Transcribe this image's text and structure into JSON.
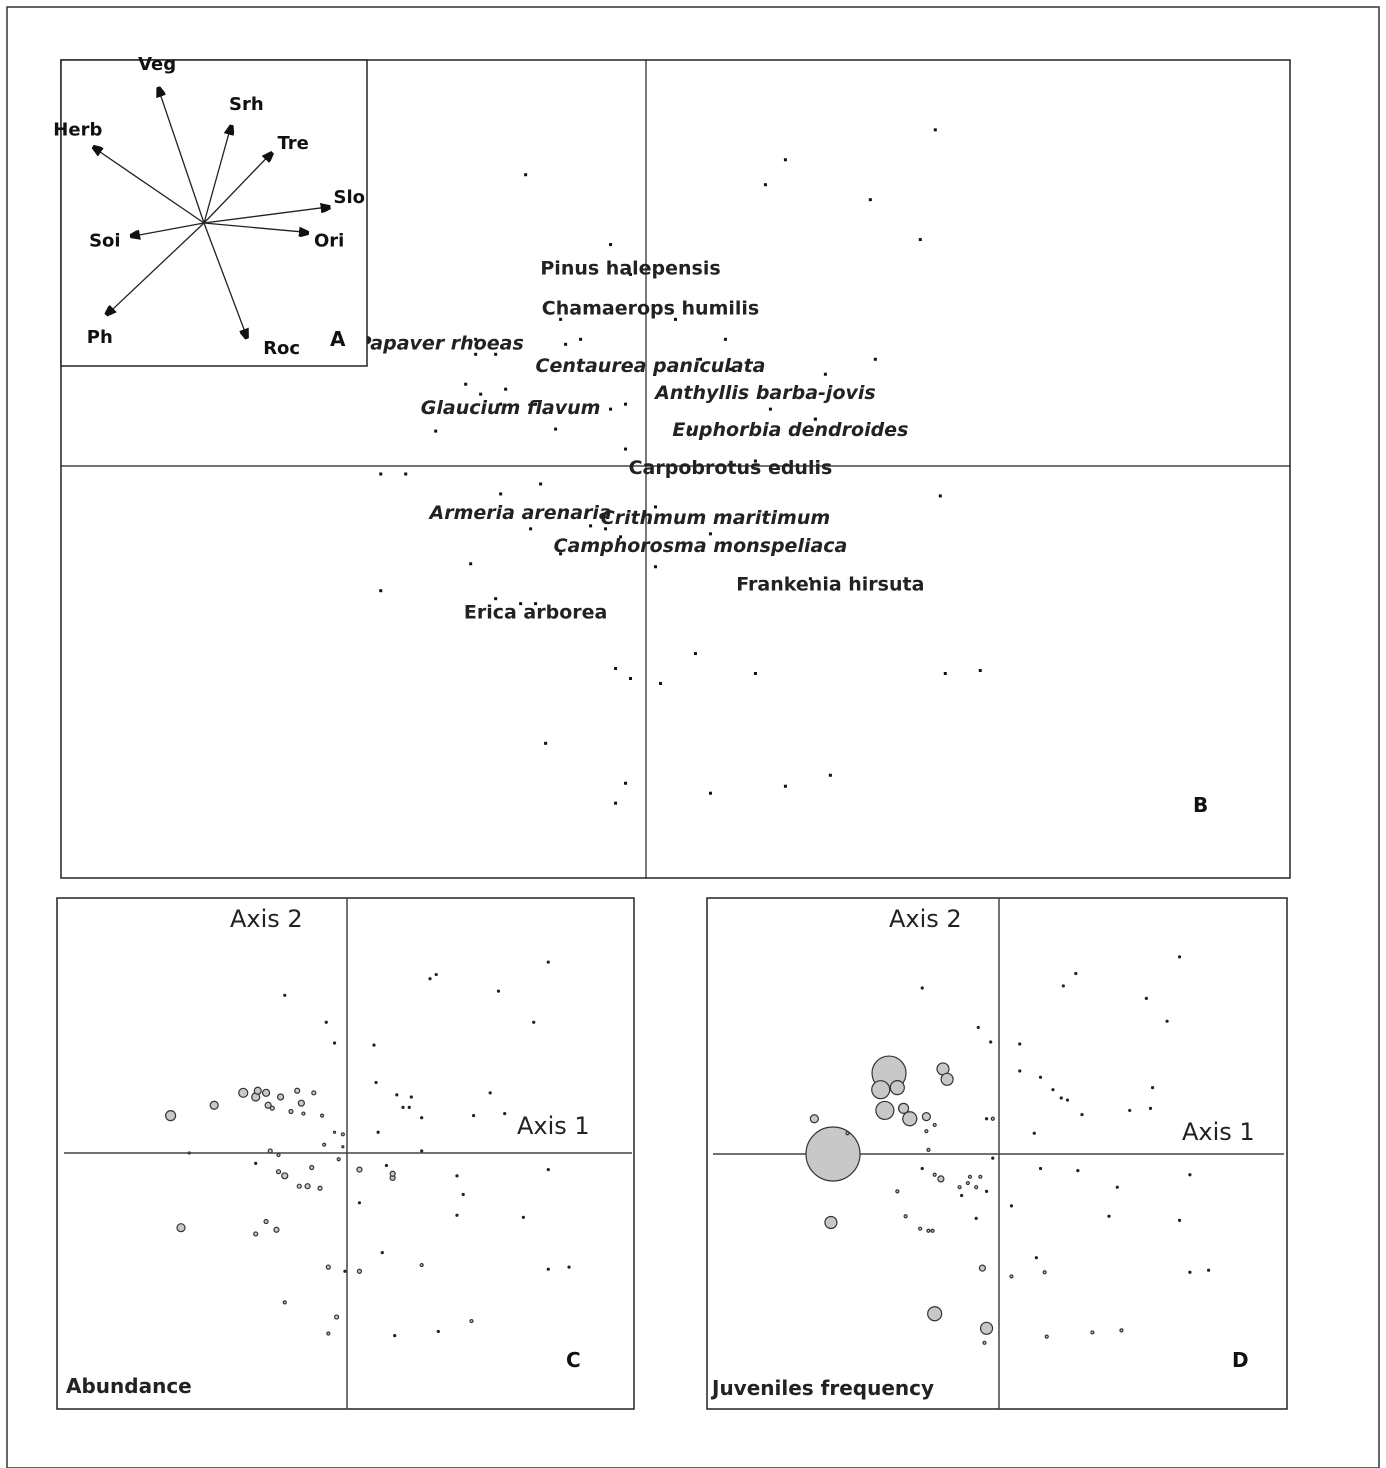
{
  "panels": {
    "a": {
      "letter": "A"
    },
    "b": {
      "letter": "B"
    },
    "c": {
      "letter": "C",
      "x_axis_label": "Axis 1",
      "y_axis_label": "Axis 2",
      "caption": "Abundance"
    },
    "d": {
      "letter": "D",
      "x_axis_label": "Axis 1",
      "y_axis_label": "Axis 2",
      "caption": "Juveniles frequency"
    }
  },
  "chart_data": [
    {
      "panel": "A",
      "type": "biplot",
      "vectors": [
        {
          "name": "Veg",
          "x": -0.34,
          "y": 1.0
        },
        {
          "name": "Herb",
          "x": -0.82,
          "y": 0.56
        },
        {
          "name": "Srh",
          "x": 0.2,
          "y": 0.72
        },
        {
          "name": "Tre",
          "x": 0.5,
          "y": 0.52
        },
        {
          "name": "Slo",
          "x": 0.93,
          "y": 0.12
        },
        {
          "name": "Ori",
          "x": 0.77,
          "y": -0.07
        },
        {
          "name": "Soi",
          "x": -0.54,
          "y": -0.1
        },
        {
          "name": "Ph",
          "x": -0.72,
          "y": -0.68
        },
        {
          "name": "Roc",
          "x": 0.32,
          "y": -0.85
        }
      ]
    },
    {
      "panel": "B",
      "type": "scatter",
      "xlim": [
        -5.8,
        6.5
      ],
      "ylim": [
        -4.1,
        4.1
      ],
      "species": [
        {
          "name": "Pinus halepensis",
          "x": -0.1,
          "y": 1.95
        },
        {
          "name": "Chamaerops humilis",
          "x": 0.1,
          "y": 1.55
        },
        {
          "name": "Papaver rhoeas",
          "x": -2.0,
          "y": 1.2
        },
        {
          "name": "Centaurea paniculata",
          "x": 0.1,
          "y": 0.97
        },
        {
          "name": "Anthyllis barba-jovis",
          "x": 1.25,
          "y": 0.7
        },
        {
          "name": "Glaucium flavum",
          "x": -1.3,
          "y": 0.55
        },
        {
          "name": "Euphorbia dendroides",
          "x": 1.5,
          "y": 0.33
        },
        {
          "name": "Carpobrotus edulis",
          "x": 0.9,
          "y": -0.05
        },
        {
          "name": "Armeria arenaria",
          "x": -1.2,
          "y": -0.5
        },
        {
          "name": "Crithmum maritimum",
          "x": 0.75,
          "y": -0.55
        },
        {
          "name": "Camphorosma monspeliaca",
          "x": 0.6,
          "y": -0.83
        },
        {
          "name": "Frankenia hirsuta",
          "x": 1.9,
          "y": -1.22
        },
        {
          "name": "Erica arborea",
          "x": -1.05,
          "y": -1.5
        }
      ],
      "points": [
        [
          2.95,
          3.4
        ],
        [
          1.45,
          3.1
        ],
        [
          1.25,
          2.85
        ],
        [
          2.3,
          2.7
        ],
        [
          -1.15,
          2.95
        ],
        [
          2.8,
          2.3
        ],
        [
          -0.3,
          2.25
        ],
        [
          -0.1,
          1.95
        ],
        [
          0.35,
          1.5
        ],
        [
          -0.8,
          1.5
        ],
        [
          -0.6,
          1.3
        ],
        [
          0.85,
          1.3
        ],
        [
          -0.75,
          1.25
        ],
        [
          -1.65,
          1.3
        ],
        [
          -1.65,
          1.15
        ],
        [
          -1.45,
          1.15
        ],
        [
          0.6,
          1.1
        ],
        [
          2.35,
          1.1
        ],
        [
          0.9,
          1.0
        ],
        [
          1.85,
          0.95
        ],
        [
          -1.35,
          0.8
        ],
        [
          -1.75,
          0.85
        ],
        [
          -1.4,
          0.65
        ],
        [
          -1.05,
          0.65
        ],
        [
          -0.15,
          0.65
        ],
        [
          1.3,
          0.6
        ],
        [
          1.75,
          0.5
        ],
        [
          -0.3,
          0.6
        ],
        [
          -1.6,
          0.75
        ],
        [
          0.5,
          0.4
        ],
        [
          1.75,
          0.5
        ],
        [
          -2.05,
          0.38
        ],
        [
          -0.85,
          0.4
        ],
        [
          -0.15,
          0.2
        ],
        [
          1.15,
          0.08
        ],
        [
          -2.6,
          -0.05
        ],
        [
          -2.35,
          -0.05
        ],
        [
          -1.0,
          -0.15
        ],
        [
          -1.4,
          -0.25
        ],
        [
          3.0,
          -0.27
        ],
        [
          0.15,
          -0.38
        ],
        [
          -0.5,
          -0.57
        ],
        [
          -0.35,
          -0.6
        ],
        [
          -0.2,
          -0.68
        ],
        [
          0.7,
          -0.65
        ],
        [
          -1.1,
          -0.6
        ],
        [
          -0.8,
          -0.85
        ],
        [
          0.15,
          -0.98
        ],
        [
          -1.7,
          -0.95
        ],
        [
          1.7,
          -1.1
        ],
        [
          -2.6,
          -1.22
        ],
        [
          -1.45,
          -1.3
        ],
        [
          -1.2,
          -1.35
        ],
        [
          -1.05,
          -1.35
        ],
        [
          0.55,
          -1.85
        ],
        [
          -0.25,
          -2.0
        ],
        [
          -0.1,
          -2.1
        ],
        [
          0.2,
          -2.15
        ],
        [
          1.15,
          -2.05
        ],
        [
          3.05,
          -2.05
        ],
        [
          3.4,
          -2.02
        ],
        [
          -0.95,
          -2.75
        ],
        [
          -0.15,
          -3.15
        ],
        [
          0.7,
          -3.25
        ],
        [
          1.45,
          -3.18
        ],
        [
          1.9,
          -3.07
        ],
        [
          -0.25,
          -3.35
        ]
      ]
    },
    {
      "panel": "C",
      "type": "bubble",
      "title": "Abundance",
      "xlabel": "Axis 1",
      "ylabel": "Axis 2",
      "xlim": [
        -7.0,
        7.0
      ],
      "ylim": [
        -6.1,
        6.1
      ],
      "points": [
        [
          -4.25,
          0.9,
          5
        ],
        [
          -3.2,
          1.15,
          4
        ],
        [
          -2.5,
          1.45,
          4.5
        ],
        [
          -2.2,
          1.35,
          4
        ],
        [
          -2.15,
          1.5,
          3.5
        ],
        [
          -1.95,
          1.45,
          3.5
        ],
        [
          -1.9,
          1.15,
          3
        ],
        [
          -1.6,
          1.35,
          3
        ],
        [
          -1.2,
          1.5,
          2.5
        ],
        [
          -1.1,
          1.2,
          3
        ],
        [
          -1.8,
          1.08,
          2
        ],
        [
          -0.8,
          1.45,
          2
        ],
        [
          -1.35,
          1.0,
          2
        ],
        [
          -1.05,
          0.95,
          1.5
        ],
        [
          -0.6,
          0.9,
          1.5
        ],
        [
          -1.85,
          0.05,
          2
        ],
        [
          -1.65,
          -0.05,
          1.5
        ],
        [
          -0.55,
          0.2,
          1.5
        ],
        [
          -0.1,
          0.45,
          1.5
        ],
        [
          -3.8,
          0.0,
          1
        ],
        [
          -0.2,
          -0.15,
          1.5
        ],
        [
          -0.85,
          -0.35,
          2
        ],
        [
          -0.1,
          0.15,
          1
        ],
        [
          -0.3,
          0.5,
          1
        ],
        [
          0.3,
          -0.4,
          2.5
        ],
        [
          1.1,
          -0.6,
          2.5
        ],
        [
          -1.5,
          -0.55,
          3
        ],
        [
          -1.65,
          -0.45,
          2
        ],
        [
          -1.15,
          -0.8,
          2
        ],
        [
          -0.95,
          -0.8,
          2.5
        ],
        [
          -0.65,
          -0.85,
          2
        ],
        [
          -4.0,
          -1.8,
          4
        ],
        [
          -1.95,
          -1.65,
          2
        ],
        [
          -1.7,
          -1.85,
          2.5
        ],
        [
          -2.2,
          -1.95,
          2
        ],
        [
          -0.45,
          -2.75,
          2
        ],
        [
          0.3,
          -2.85,
          2
        ],
        [
          -1.5,
          -3.6,
          1.5
        ],
        [
          -0.25,
          -3.95,
          2
        ],
        [
          -0.45,
          -4.35,
          1.5
        ],
        [
          1.8,
          -2.7,
          1.5
        ],
        [
          3.0,
          -4.05,
          1.5
        ],
        [
          1.1,
          -0.5,
          2.5
        ]
      ],
      "small_points": [
        [
          -1.5,
          3.8
        ],
        [
          -0.5,
          3.15
        ],
        [
          0.65,
          2.6
        ],
        [
          2.0,
          4.2
        ],
        [
          2.15,
          4.3
        ],
        [
          3.65,
          3.9
        ],
        [
          4.85,
          4.6
        ],
        [
          4.5,
          3.15
        ],
        [
          -0.3,
          2.65
        ],
        [
          0.7,
          1.7
        ],
        [
          1.2,
          1.4
        ],
        [
          1.35,
          1.1
        ],
        [
          1.5,
          1.1
        ],
        [
          1.55,
          1.35
        ],
        [
          3.45,
          1.45
        ],
        [
          3.8,
          0.95
        ],
        [
          3.05,
          0.9
        ],
        [
          1.8,
          0.85
        ],
        [
          0.75,
          0.5
        ],
        [
          1.8,
          0.05
        ],
        [
          0.95,
          -0.3
        ],
        [
          2.65,
          -0.55
        ],
        [
          2.8,
          -1.0
        ],
        [
          4.85,
          -0.4
        ],
        [
          -2.2,
          -0.25
        ],
        [
          0.3,
          -1.2
        ],
        [
          2.65,
          -1.5
        ],
        [
          4.25,
          -1.55
        ],
        [
          0.85,
          -2.4
        ],
        [
          4.85,
          -2.8
        ],
        [
          5.35,
          -2.75
        ],
        [
          -0.05,
          -2.85
        ],
        [
          1.15,
          -4.4
        ],
        [
          2.2,
          -4.3
        ]
      ]
    },
    {
      "panel": "D",
      "type": "bubble",
      "title": "Juveniles frequency",
      "xlabel": "Axis 1",
      "ylabel": "Axis 2",
      "xlim": [
        -7.0,
        7.0
      ],
      "ylim": [
        -6.1,
        6.1
      ],
      "points": [
        [
          -4.0,
          0.0,
          27
        ],
        [
          -2.65,
          1.95,
          17
        ],
        [
          -2.85,
          1.55,
          9
        ],
        [
          -2.45,
          1.6,
          7
        ],
        [
          -2.75,
          1.05,
          9
        ],
        [
          -2.3,
          1.1,
          5
        ],
        [
          -2.15,
          0.85,
          7
        ],
        [
          -1.75,
          0.9,
          4
        ],
        [
          -1.35,
          2.05,
          6
        ],
        [
          -1.25,
          1.8,
          6
        ],
        [
          -4.45,
          0.85,
          4
        ],
        [
          -4.05,
          -1.65,
          6
        ],
        [
          -1.55,
          -3.85,
          7
        ],
        [
          -0.3,
          -4.2,
          6
        ],
        [
          -0.4,
          -2.75,
          3
        ],
        [
          -1.4,
          -0.6,
          3
        ],
        [
          -1.55,
          -0.5,
          1.5
        ],
        [
          -0.95,
          -0.8,
          1.5
        ],
        [
          -0.75,
          -0.7,
          1.5
        ],
        [
          -0.55,
          -0.8,
          1.5
        ],
        [
          -0.7,
          -0.55,
          1.5
        ],
        [
          -0.45,
          -0.55,
          1.5
        ],
        [
          -2.45,
          -0.9,
          1.5
        ],
        [
          -2.25,
          -1.5,
          1.5
        ],
        [
          -1.9,
          -1.8,
          1.5
        ],
        [
          -1.7,
          -1.85,
          1.5
        ],
        [
          -1.6,
          -1.85,
          1.5
        ],
        [
          -1.55,
          0.7,
          1.5
        ],
        [
          -1.7,
          0.1,
          1.5
        ],
        [
          -0.15,
          0.85,
          1.5
        ],
        [
          -1.75,
          0.55,
          1.5
        ],
        [
          -3.65,
          0.5,
          1.5
        ],
        [
          -0.35,
          -4.55,
          1.5
        ],
        [
          0.3,
          -2.95,
          1.5
        ],
        [
          1.1,
          -2.85,
          1.5
        ],
        [
          1.15,
          -4.4,
          1.5
        ],
        [
          2.25,
          -4.3,
          1.5
        ],
        [
          2.95,
          -4.25,
          1.5
        ]
      ],
      "small_points": [
        [
          -1.85,
          4.0
        ],
        [
          -0.5,
          3.05
        ],
        [
          -0.2,
          2.7
        ],
        [
          0.5,
          2.65
        ],
        [
          1.55,
          4.05
        ],
        [
          1.85,
          4.35
        ],
        [
          3.55,
          3.75
        ],
        [
          4.35,
          4.75
        ],
        [
          4.05,
          3.2
        ],
        [
          0.5,
          2.0
        ],
        [
          1.0,
          1.85
        ],
        [
          1.3,
          1.55
        ],
        [
          1.5,
          1.35
        ],
        [
          1.65,
          1.3
        ],
        [
          3.7,
          1.6
        ],
        [
          3.15,
          1.05
        ],
        [
          3.65,
          1.1
        ],
        [
          2.0,
          0.95
        ],
        [
          0.85,
          0.5
        ],
        [
          -0.3,
          0.85
        ],
        [
          -1.85,
          -0.35
        ],
        [
          1.0,
          -0.35
        ],
        [
          1.9,
          -0.4
        ],
        [
          2.85,
          -0.8
        ],
        [
          4.6,
          -0.5
        ],
        [
          -0.15,
          -0.1
        ],
        [
          0.3,
          -1.25
        ],
        [
          2.65,
          -1.5
        ],
        [
          4.35,
          -1.6
        ],
        [
          0.9,
          -2.5
        ],
        [
          4.6,
          -2.85
        ],
        [
          5.05,
          -2.8
        ],
        [
          -0.55,
          -1.55
        ],
        [
          -0.9,
          -1.0
        ],
        [
          -0.3,
          -0.9
        ]
      ]
    }
  ]
}
